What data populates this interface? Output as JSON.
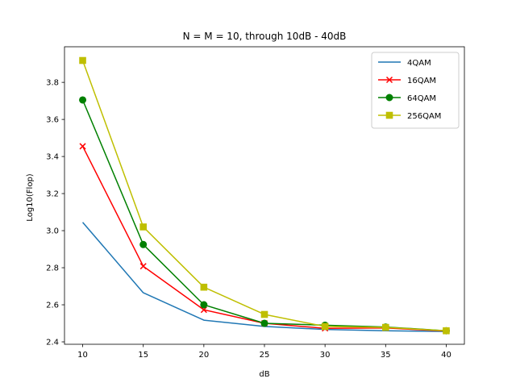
{
  "chart_data": {
    "type": "line",
    "title": "N = M = 10, through 10dB - 40dB",
    "xlabel": "dB",
    "ylabel": "Log10(Flop)",
    "x": [
      10,
      15,
      20,
      25,
      30,
      35,
      40
    ],
    "xticks": [
      10,
      15,
      20,
      25,
      30,
      35,
      40
    ],
    "yticks": [
      2.4,
      2.6,
      2.8,
      3.0,
      3.2,
      3.4,
      3.6,
      3.8
    ],
    "xlim": [
      8.5,
      41.5
    ],
    "ylim": [
      2.387,
      3.992
    ],
    "grid": false,
    "legend_position": "top-right",
    "series": [
      {
        "name": "4QAM",
        "values": [
          3.045,
          2.665,
          2.517,
          2.483,
          2.467,
          2.46,
          2.456
        ],
        "color": "#1f77b4",
        "marker": "none"
      },
      {
        "name": "16QAM",
        "values": [
          3.455,
          2.808,
          2.573,
          2.5,
          2.473,
          2.475,
          2.458
        ],
        "color": "#ff0000",
        "marker": "x"
      },
      {
        "name": "64QAM",
        "values": [
          3.705,
          2.925,
          2.6,
          2.5,
          2.49,
          2.48,
          2.46
        ],
        "color": "#008000",
        "marker": "circle"
      },
      {
        "name": "256QAM",
        "values": [
          3.918,
          3.02,
          2.695,
          2.548,
          2.483,
          2.478,
          2.46
        ],
        "color": "#bfbf00",
        "marker": "square"
      }
    ]
  }
}
